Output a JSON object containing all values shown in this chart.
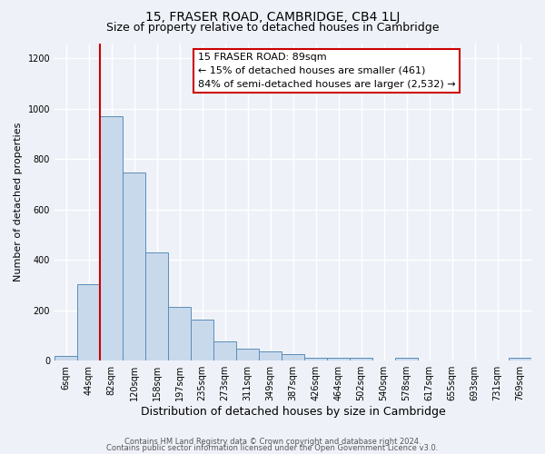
{
  "title": "15, FRASER ROAD, CAMBRIDGE, CB4 1LJ",
  "subtitle": "Size of property relative to detached houses in Cambridge",
  "xlabel": "Distribution of detached houses by size in Cambridge",
  "ylabel": "Number of detached properties",
  "bar_labels": [
    "6sqm",
    "44sqm",
    "82sqm",
    "120sqm",
    "158sqm",
    "197sqm",
    "235sqm",
    "273sqm",
    "311sqm",
    "349sqm",
    "387sqm",
    "426sqm",
    "464sqm",
    "502sqm",
    "540sqm",
    "578sqm",
    "617sqm",
    "655sqm",
    "693sqm",
    "731sqm",
    "769sqm"
  ],
  "bar_values": [
    20,
    305,
    970,
    745,
    430,
    215,
    163,
    75,
    48,
    35,
    25,
    13,
    10,
    10,
    0,
    10,
    0,
    0,
    0,
    0,
    10
  ],
  "bar_color": "#c9d9ec",
  "bar_edge_color": "#5b8db8",
  "vline_color": "#cc0000",
  "vline_x_index": 2,
  "ylim": [
    0,
    1260
  ],
  "yticks": [
    0,
    200,
    400,
    600,
    800,
    1000,
    1200
  ],
  "annotation_title": "15 FRASER ROAD: 89sqm",
  "annotation_line1": "← 15% of detached houses are smaller (461)",
  "annotation_line2": "84% of semi-detached houses are larger (2,532) →",
  "annotation_box_color": "#ffffff",
  "annotation_box_edge": "#cc0000",
  "footer_line1": "Contains HM Land Registry data © Crown copyright and database right 2024.",
  "footer_line2": "Contains public sector information licensed under the Open Government Licence v3.0.",
  "background_color": "#eef2f8",
  "grid_color": "#ffffff",
  "title_fontsize": 10,
  "subtitle_fontsize": 9,
  "ylabel_fontsize": 8,
  "xlabel_fontsize": 9,
  "tick_fontsize": 7,
  "footer_fontsize": 6,
  "annotation_fontsize": 8
}
